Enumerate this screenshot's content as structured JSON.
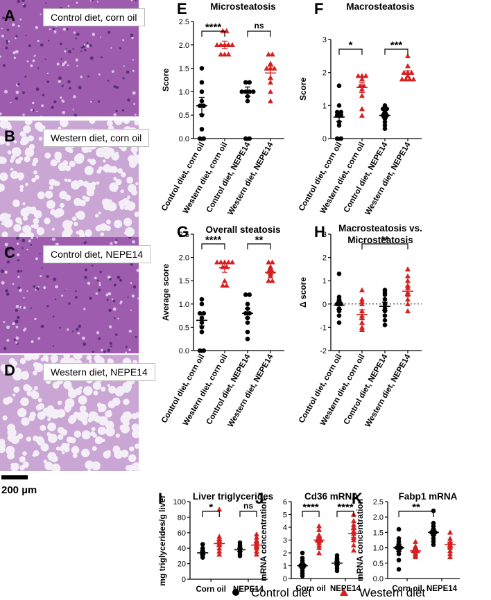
{
  "histology": [
    {
      "letter": "A",
      "label": "Control diet, corn oil",
      "type": "control"
    },
    {
      "letter": "B",
      "label": "Western diet, corn oil",
      "type": "western"
    },
    {
      "letter": "C",
      "label": "Control diet, NEPE14",
      "type": "control"
    },
    {
      "letter": "D",
      "label": "Western diet, NEPE14",
      "type": "western"
    }
  ],
  "scale_bar": {
    "label": "200 µm"
  },
  "legend": {
    "items": [
      {
        "label": "Control diet",
        "marker": "circle",
        "color": "#000000"
      },
      {
        "label": "Western diet",
        "marker": "triangle",
        "color": "#d62020"
      }
    ]
  },
  "chart_data": [
    {
      "letter": "E",
      "type": "scatter",
      "title": "Microsteatosis",
      "ylabel": "Score",
      "ylim": [
        0,
        2.5
      ],
      "yticks": [
        "0.0",
        "0.5",
        "1.0",
        "1.5",
        "2.0",
        "2.5"
      ],
      "categories": [
        "Control diet, corn oil",
        "Western diet, corn oil",
        "Control diet, NEPE14",
        "Western diet, NEPE14"
      ],
      "groups": [
        {
          "marker": "circle",
          "color": "#000000",
          "mean": 0.7,
          "sem": 0.18,
          "values": [
            0,
            0,
            0.2,
            0.5,
            0.7,
            0.7,
            0.8,
            1,
            1.2,
            1.5
          ]
        },
        {
          "marker": "triangle",
          "color": "#d62020",
          "mean": 2.0,
          "sem": 0.08,
          "values": [
            1.8,
            1.8,
            1.8,
            2,
            2,
            2,
            2,
            2,
            2.3,
            2.3
          ]
        },
        {
          "marker": "circle",
          "color": "#000000",
          "mean": 1.0,
          "sem": 0.1,
          "values": [
            0,
            0,
            0.8,
            0.9,
            1,
            1,
            1,
            1,
            1.2,
            1.2
          ]
        },
        {
          "marker": "triangle",
          "color": "#d62020",
          "mean": 1.4,
          "sem": 0.14,
          "values": [
            0.8,
            1,
            1.2,
            1.3,
            1.5,
            1.5,
            1.5,
            1.6,
            1.8,
            1.8
          ]
        }
      ],
      "brackets": [
        {
          "from": 0,
          "to": 1,
          "text": "****"
        },
        {
          "from": 2,
          "to": 3,
          "text": "ns"
        }
      ]
    },
    {
      "letter": "F",
      "type": "scatter",
      "title": "Macrosteatosis",
      "ylabel": "Score",
      "ylim": [
        0,
        3
      ],
      "yticks": [
        "0",
        "1",
        "2",
        "3"
      ],
      "categories": [
        "Control diet, corn oil",
        "Western diet, corn oil",
        "Control diet, NEPE14",
        "Western diet, NEPE14"
      ],
      "groups": [
        {
          "marker": "circle",
          "color": "#000000",
          "mean": 0.65,
          "sem": 0.13,
          "values": [
            0,
            0,
            0.4,
            0.5,
            0.7,
            0.7,
            0.8,
            0.8,
            1,
            1.6
          ]
        },
        {
          "marker": "triangle",
          "color": "#d62020",
          "mean": 1.55,
          "sem": 0.15,
          "values": [
            0.7,
            0.9,
            1.3,
            1.5,
            1.6,
            1.6,
            1.8,
            1.9,
            1.9,
            1.9
          ]
        },
        {
          "marker": "circle",
          "color": "#000000",
          "mean": 0.7,
          "sem": 0.08,
          "values": [
            0.3,
            0.4,
            0.5,
            0.6,
            0.7,
            0.7,
            0.8,
            0.9,
            0.9,
            1
          ]
        },
        {
          "marker": "triangle",
          "color": "#d62020",
          "mean": 1.95,
          "sem": 0.1,
          "values": [
            1.8,
            1.8,
            1.8,
            1.8,
            1.9,
            2,
            2,
            2,
            2.2,
            2.5
          ]
        }
      ],
      "brackets": [
        {
          "from": 0,
          "to": 1,
          "text": "*"
        },
        {
          "from": 2,
          "to": 3,
          "text": "***"
        }
      ]
    },
    {
      "letter": "G",
      "type": "scatter",
      "title": "Overall steatosis",
      "ylabel": "Average score",
      "ylim": [
        0,
        2.5
      ],
      "yticks": [
        "0.0",
        "0.5",
        "1.0",
        "1.5",
        "2.0",
        "2.5"
      ],
      "categories": [
        "Control diet, corn oil",
        "Western diet, corn oil",
        "Control diet, NEPE14",
        "Western diet, NEPE14"
      ],
      "groups": [
        {
          "marker": "circle",
          "color": "#000000",
          "mean": 0.65,
          "sem": 0.12,
          "values": [
            0,
            0,
            0.4,
            0.5,
            0.6,
            0.7,
            0.8,
            0.8,
            1,
            1.1
          ]
        },
        {
          "marker": "triangle",
          "color": "#d62020",
          "mean": 1.78,
          "sem": 0.1,
          "values": [
            1.4,
            1.4,
            1.5,
            1.8,
            1.8,
            1.9,
            1.9,
            1.9,
            1.9,
            1.9
          ]
        },
        {
          "marker": "circle",
          "color": "#000000",
          "mean": 0.8,
          "sem": 0.1,
          "values": [
            0.25,
            0.4,
            0.6,
            0.7,
            0.8,
            0.8,
            0.9,
            1,
            1.2,
            1.2
          ]
        },
        {
          "marker": "triangle",
          "color": "#d62020",
          "mean": 1.68,
          "sem": 0.05,
          "values": [
            1.5,
            1.5,
            1.6,
            1.65,
            1.7,
            1.7,
            1.75,
            1.8,
            1.9,
            1.9
          ]
        }
      ],
      "brackets": [
        {
          "from": 0,
          "to": 1,
          "text": "****"
        },
        {
          "from": 2,
          "to": 3,
          "text": "**"
        }
      ]
    },
    {
      "letter": "H",
      "type": "scatter",
      "title": "Macrosteatosis vs. Microsteatosis",
      "ylabel": "Δ score",
      "ylim": [
        -2,
        3
      ],
      "yticks": [
        "-2",
        "-1",
        "0",
        "1",
        "2",
        "3"
      ],
      "refline": 0,
      "categories": [
        "Control diet, corn oil",
        "Western diet, corn oil",
        "Control diet, NEPE14",
        "Western diet, NEPE14"
      ],
      "groups": [
        {
          "marker": "circle",
          "color": "#000000",
          "mean": -0.05,
          "sem": 0.18,
          "values": [
            -0.8,
            -0.5,
            -0.3,
            -0.2,
            0,
            0,
            0.1,
            0.2,
            0.3,
            1.3
          ]
        },
        {
          "marker": "triangle",
          "color": "#d62020",
          "mean": -0.45,
          "sem": 0.2,
          "values": [
            -1.1,
            -1,
            -0.8,
            -0.6,
            -0.5,
            -0.3,
            0,
            0.1,
            0.2,
            0.6
          ]
        },
        {
          "marker": "circle",
          "color": "#000000",
          "mean": -0.1,
          "sem": 0.18,
          "values": [
            -0.9,
            -0.7,
            -0.5,
            -0.3,
            -0.2,
            0,
            0.2,
            0.4,
            0.5,
            0.6
          ]
        },
        {
          "marker": "triangle",
          "color": "#d62020",
          "mean": 0.55,
          "sem": 0.18,
          "values": [
            -0.3,
            0,
            0.2,
            0.4,
            0.5,
            0.7,
            0.8,
            1,
            1.2,
            1.5
          ]
        }
      ],
      "brackets": [
        {
          "from": 1,
          "to": 3,
          "text": "**"
        }
      ]
    },
    {
      "letter": "I",
      "type": "scatter",
      "title": "Liver triglycerides",
      "ylabel": "mg triglycerides/g liver",
      "ylim": [
        0,
        100
      ],
      "yticks": [
        "0",
        "20",
        "40",
        "60",
        "80",
        "100"
      ],
      "categories": [
        "Corn oil",
        "NEPE14"
      ],
      "groups": [
        {
          "cat": 0,
          "marker": "circle",
          "color": "#000000",
          "mean": 34,
          "sem": 2,
          "values": [
            28,
            30,
            31,
            33,
            34,
            35,
            36,
            37,
            40,
            45
          ]
        },
        {
          "cat": 0,
          "marker": "triangle",
          "color": "#d62020",
          "mean": 46,
          "sem": 4,
          "values": [
            32,
            36,
            40,
            44,
            46,
            48,
            50,
            52,
            55,
            90
          ]
        },
        {
          "cat": 1,
          "marker": "circle",
          "color": "#000000",
          "mean": 38,
          "sem": 2,
          "values": [
            30,
            32,
            35,
            36,
            38,
            39,
            40,
            42,
            44,
            47
          ]
        },
        {
          "cat": 1,
          "marker": "triangle",
          "color": "#d62020",
          "mean": 44,
          "sem": 3,
          "values": [
            32,
            36,
            40,
            42,
            44,
            46,
            48,
            50,
            54,
            58
          ]
        }
      ],
      "brackets": [
        {
          "from": 0,
          "to": 1,
          "text": "*"
        },
        {
          "from": 2,
          "to": 3,
          "text": "ns"
        }
      ]
    },
    {
      "letter": "J",
      "type": "scatter",
      "title": "Cd36 mRNA",
      "ylabel": "mRNA concentration",
      "ylim": [
        0,
        6
      ],
      "yticks": [
        "0",
        "1",
        "2",
        "3",
        "4",
        "5",
        "6"
      ],
      "categories": [
        "Corn oil",
        "NEPE14"
      ],
      "groups": [
        {
          "cat": 0,
          "marker": "circle",
          "color": "#000000",
          "mean": 1.0,
          "sem": 0.2,
          "values": [
            0.2,
            0.4,
            0.6,
            0.8,
            1,
            1,
            1.2,
            1.4,
            1.6,
            2
          ]
        },
        {
          "cat": 0,
          "marker": "triangle",
          "color": "#d62020",
          "mean": 3.0,
          "sem": 0.2,
          "values": [
            2,
            2.4,
            2.6,
            2.8,
            3,
            3,
            3.2,
            3.4,
            3.8,
            4.1
          ]
        },
        {
          "cat": 1,
          "marker": "circle",
          "color": "#000000",
          "mean": 1.2,
          "sem": 0.1,
          "values": [
            0.6,
            0.8,
            1,
            1.1,
            1.2,
            1.3,
            1.4,
            1.5,
            1.6,
            1.8
          ]
        },
        {
          "cat": 1,
          "marker": "triangle",
          "color": "#d62020",
          "mean": 3.5,
          "sem": 0.3,
          "values": [
            2.2,
            2.6,
            3,
            3.2,
            3.5,
            3.7,
            4,
            4.2,
            4.5,
            5
          ]
        }
      ],
      "brackets": [
        {
          "from": 0,
          "to": 1,
          "text": "****"
        },
        {
          "from": 2,
          "to": 3,
          "text": "****"
        }
      ]
    },
    {
      "letter": "K",
      "type": "scatter",
      "title": "Fabp1 mRNA",
      "ylabel": "mRNA concentration",
      "ylim": [
        0,
        2.5
      ],
      "yticks": [
        "0.0",
        "0.5",
        "1.0",
        "1.5",
        "2.0",
        "2.5"
      ],
      "categories": [
        "Corn oil",
        "NEPE14"
      ],
      "groups": [
        {
          "cat": 0,
          "marker": "circle",
          "color": "#000000",
          "mean": 1.0,
          "sem": 0.12,
          "values": [
            0.3,
            0.6,
            0.8,
            0.9,
            1,
            1,
            1.1,
            1.2,
            1.3,
            1.6
          ]
        },
        {
          "cat": 0,
          "marker": "triangle",
          "color": "#d62020",
          "mean": 0.9,
          "sem": 0.05,
          "values": [
            0.7,
            0.75,
            0.8,
            0.85,
            0.9,
            0.9,
            0.95,
            1,
            1.05,
            1.2
          ]
        },
        {
          "cat": 1,
          "marker": "circle",
          "color": "#000000",
          "mean": 1.5,
          "sem": 0.1,
          "values": [
            1.1,
            1.2,
            1.3,
            1.4,
            1.5,
            1.5,
            1.6,
            1.7,
            1.8,
            2.2
          ]
        },
        {
          "cat": 1,
          "marker": "triangle",
          "color": "#d62020",
          "mean": 1.1,
          "sem": 0.08,
          "values": [
            0.7,
            0.8,
            0.9,
            1,
            1.05,
            1.1,
            1.15,
            1.2,
            1.3,
            1.5
          ]
        }
      ],
      "brackets": [
        {
          "from": 0,
          "to": 2,
          "text": "**"
        }
      ]
    }
  ]
}
